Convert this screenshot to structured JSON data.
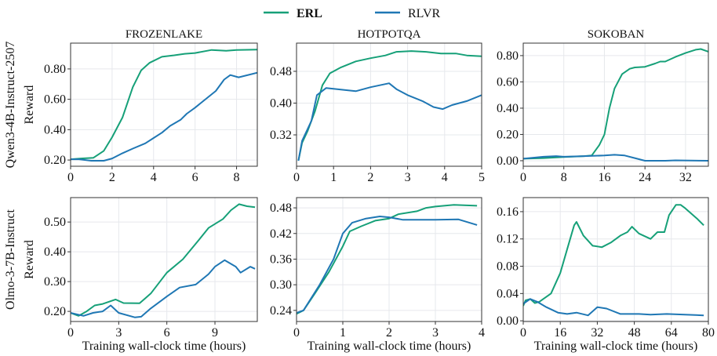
{
  "legend": {
    "entries": [
      {
        "name": "ERL",
        "color": "#16a078"
      },
      {
        "name": "RLVR",
        "color": "#1f77b4"
      }
    ]
  },
  "row_labels": [
    "Qwen3-4B-Instruct-2507",
    "Olmo-3-7B-Instruct"
  ],
  "chart_data": [
    {
      "type": "line",
      "title": "FROZENLAKE",
      "ylabel": "Reward",
      "xlabel": "",
      "xlim": [
        0,
        9
      ],
      "ylim": [
        0.159,
        0.97
      ],
      "xticks": [
        0,
        2,
        4,
        6,
        8
      ],
      "yticks": [
        "0.20",
        "0.40",
        "0.60",
        "0.80"
      ],
      "series": [
        {
          "name": "ERL",
          "values": [
            [
              0,
              0.205
            ],
            [
              0.5,
              0.21
            ],
            [
              1.1,
              0.215
            ],
            [
              1.6,
              0.26
            ],
            [
              2,
              0.35
            ],
            [
              2.5,
              0.48
            ],
            [
              3,
              0.68
            ],
            [
              3.4,
              0.79
            ],
            [
              3.8,
              0.84
            ],
            [
              4.4,
              0.88
            ],
            [
              5,
              0.89
            ],
            [
              5.5,
              0.9
            ],
            [
              6,
              0.905
            ],
            [
              6.8,
              0.925
            ],
            [
              7.5,
              0.92
            ],
            [
              8,
              0.925
            ],
            [
              9,
              0.927
            ]
          ]
        },
        {
          "name": "RLVR",
          "values": [
            [
              0,
              0.205
            ],
            [
              0.4,
              0.205
            ],
            [
              1,
              0.195
            ],
            [
              1.6,
              0.195
            ],
            [
              2,
              0.21
            ],
            [
              2.5,
              0.245
            ],
            [
              3,
              0.275
            ],
            [
              3.6,
              0.31
            ],
            [
              4,
              0.345
            ],
            [
              4.4,
              0.38
            ],
            [
              4.8,
              0.425
            ],
            [
              5.3,
              0.465
            ],
            [
              5.6,
              0.505
            ],
            [
              6,
              0.545
            ],
            [
              6.5,
              0.6
            ],
            [
              7,
              0.655
            ],
            [
              7.4,
              0.73
            ],
            [
              7.7,
              0.76
            ],
            [
              8.1,
              0.745
            ],
            [
              9,
              0.775
            ]
          ]
        }
      ]
    },
    {
      "type": "line",
      "title": "HOTPOTQA",
      "ylabel": "",
      "xlabel": "",
      "xlim": [
        0,
        5
      ],
      "ylim": [
        0.241,
        0.551
      ],
      "xticks": [
        0,
        1,
        2,
        3,
        4,
        5
      ],
      "yticks": [
        "0.32",
        "0.40",
        "0.48"
      ],
      "series": [
        {
          "name": "ERL",
          "values": [
            [
              0.05,
              0.255
            ],
            [
              0.15,
              0.3
            ],
            [
              0.3,
              0.33
            ],
            [
              0.5,
              0.38
            ],
            [
              0.7,
              0.445
            ],
            [
              0.9,
              0.475
            ],
            [
              1.2,
              0.49
            ],
            [
              1.6,
              0.505
            ],
            [
              2,
              0.513
            ],
            [
              2.4,
              0.52
            ],
            [
              2.7,
              0.529
            ],
            [
              3.1,
              0.531
            ],
            [
              3.5,
              0.529
            ],
            [
              3.9,
              0.525
            ],
            [
              4.3,
              0.525
            ],
            [
              4.6,
              0.52
            ],
            [
              5,
              0.518
            ]
          ]
        },
        {
          "name": "RLVR",
          "values": [
            [
              0.05,
              0.255
            ],
            [
              0.15,
              0.305
            ],
            [
              0.3,
              0.335
            ],
            [
              0.4,
              0.355
            ],
            [
              0.55,
              0.42
            ],
            [
              0.8,
              0.438
            ],
            [
              1.1,
              0.435
            ],
            [
              1.6,
              0.43
            ],
            [
              2,
              0.44
            ],
            [
              2.5,
              0.45
            ],
            [
              2.7,
              0.435
            ],
            [
              3,
              0.42
            ],
            [
              3.4,
              0.405
            ],
            [
              3.7,
              0.39
            ],
            [
              3.95,
              0.385
            ],
            [
              4.2,
              0.395
            ],
            [
              4.6,
              0.405
            ],
            [
              5,
              0.42
            ]
          ]
        }
      ]
    },
    {
      "type": "line",
      "title": "SOKOBAN",
      "ylabel": "",
      "xlabel": "",
      "xlim": [
        0,
        36.5
      ],
      "ylim": [
        -0.042,
        0.895
      ],
      "xticks": [
        0,
        8,
        16,
        24,
        32
      ],
      "yticks": [
        "0.00",
        "0.20",
        "0.40",
        "0.60",
        "0.80"
      ],
      "series": [
        {
          "name": "ERL",
          "values": [
            [
              0,
              0.015
            ],
            [
              4,
              0.02
            ],
            [
              8,
              0.028
            ],
            [
              12,
              0.035
            ],
            [
              13.5,
              0.04
            ],
            [
              15,
              0.12
            ],
            [
              16,
              0.2
            ],
            [
              17,
              0.4
            ],
            [
              18,
              0.55
            ],
            [
              19.5,
              0.66
            ],
            [
              21,
              0.7
            ],
            [
              22,
              0.71
            ],
            [
              24,
              0.715
            ],
            [
              26,
              0.74
            ],
            [
              27,
              0.755
            ],
            [
              28,
              0.755
            ],
            [
              30,
              0.79
            ],
            [
              32,
              0.82
            ],
            [
              34,
              0.845
            ],
            [
              35,
              0.85
            ],
            [
              36.5,
              0.83
            ]
          ]
        },
        {
          "name": "RLVR",
          "values": [
            [
              0,
              0.015
            ],
            [
              4,
              0.03
            ],
            [
              6.5,
              0.035
            ],
            [
              8,
              0.03
            ],
            [
              12,
              0.035
            ],
            [
              16,
              0.04
            ],
            [
              18,
              0.045
            ],
            [
              20,
              0.04
            ],
            [
              22,
              0.02
            ],
            [
              24,
              0.0
            ],
            [
              28,
              0.0
            ],
            [
              30,
              0.003
            ],
            [
              36.5,
              0.0
            ]
          ]
        }
      ]
    },
    {
      "type": "line",
      "title": "",
      "ylabel": "Reward",
      "xlabel": "Training wall-clock time (hours)",
      "xlim": [
        0,
        11.64
      ],
      "ylim": [
        0.166,
        0.582
      ],
      "xticks": [
        0,
        3,
        6,
        9
      ],
      "yticks": [
        "0.20",
        "0.30",
        "0.40",
        "0.50"
      ],
      "series": [
        {
          "name": "ERL",
          "values": [
            [
              0,
              0.195
            ],
            [
              0.5,
              0.185
            ],
            [
              1,
              0.2
            ],
            [
              1.5,
              0.22
            ],
            [
              2,
              0.225
            ],
            [
              2.8,
              0.24
            ],
            [
              3.3,
              0.228
            ],
            [
              4.3,
              0.227
            ],
            [
              5,
              0.26
            ],
            [
              6,
              0.33
            ],
            [
              7,
              0.375
            ],
            [
              8,
              0.44
            ],
            [
              8.6,
              0.48
            ],
            [
              9.5,
              0.51
            ],
            [
              10,
              0.54
            ],
            [
              10.5,
              0.56
            ],
            [
              11,
              0.553
            ],
            [
              11.5,
              0.55
            ]
          ]
        },
        {
          "name": "RLVR",
          "values": [
            [
              0,
              0.195
            ],
            [
              0.8,
              0.185
            ],
            [
              1.4,
              0.195
            ],
            [
              2,
              0.2
            ],
            [
              2.5,
              0.22
            ],
            [
              3,
              0.195
            ],
            [
              4,
              0.18
            ],
            [
              4.4,
              0.182
            ],
            [
              5,
              0.21
            ],
            [
              6,
              0.25
            ],
            [
              6.8,
              0.28
            ],
            [
              7.8,
              0.29
            ],
            [
              8.6,
              0.325
            ],
            [
              9,
              0.35
            ],
            [
              9.6,
              0.372
            ],
            [
              10.3,
              0.35
            ],
            [
              10.6,
              0.33
            ],
            [
              11.2,
              0.35
            ],
            [
              11.5,
              0.343
            ]
          ]
        }
      ]
    },
    {
      "type": "line",
      "title": "",
      "ylabel": "",
      "xlabel": "Training wall-clock time (hours)",
      "xlim": [
        0,
        4
      ],
      "ylim": [
        0.214,
        0.504
      ],
      "xticks": [
        0,
        1,
        2,
        3,
        4
      ],
      "yticks": [
        "0.24",
        "0.30",
        "0.36",
        "0.42",
        "0.48"
      ],
      "series": [
        {
          "name": "ERL",
          "values": [
            [
              0,
              0.232
            ],
            [
              0.15,
              0.24
            ],
            [
              0.4,
              0.28
            ],
            [
              0.7,
              0.33
            ],
            [
              1,
              0.39
            ],
            [
              1.15,
              0.425
            ],
            [
              1.4,
              0.437
            ],
            [
              1.7,
              0.45
            ],
            [
              2,
              0.455
            ],
            [
              2.2,
              0.465
            ],
            [
              2.6,
              0.472
            ],
            [
              2.8,
              0.48
            ],
            [
              3,
              0.483
            ],
            [
              3.4,
              0.487
            ],
            [
              3.9,
              0.485
            ]
          ]
        },
        {
          "name": "RLVR",
          "values": [
            [
              0,
              0.234
            ],
            [
              0.15,
              0.24
            ],
            [
              0.5,
              0.3
            ],
            [
              0.8,
              0.36
            ],
            [
              1,
              0.42
            ],
            [
              1.2,
              0.445
            ],
            [
              1.5,
              0.455
            ],
            [
              1.8,
              0.46
            ],
            [
              2,
              0.458
            ],
            [
              2.3,
              0.452
            ],
            [
              2.6,
              0.452
            ],
            [
              3,
              0.452
            ],
            [
              3.5,
              0.453
            ],
            [
              3.9,
              0.44
            ]
          ]
        }
      ]
    },
    {
      "type": "line",
      "title": "",
      "ylabel": "",
      "xlabel": "Training wall-clock time (hours)",
      "xlim": [
        0,
        80
      ],
      "ylim": [
        -0.001,
        0.1806
      ],
      "xticks": [
        0,
        16,
        32,
        48,
        64,
        80
      ],
      "yticks": [
        "0.00",
        "0.04",
        "0.08",
        "0.12",
        "0.16"
      ],
      "series": [
        {
          "name": "ERL",
          "values": [
            [
              0,
              0.022
            ],
            [
              1,
              0.03
            ],
            [
              3,
              0.032
            ],
            [
              5,
              0.026
            ],
            [
              7,
              0.028
            ],
            [
              12,
              0.04
            ],
            [
              16,
              0.07
            ],
            [
              19,
              0.105
            ],
            [
              22,
              0.14
            ],
            [
              23,
              0.145
            ],
            [
              26,
              0.125
            ],
            [
              30,
              0.11
            ],
            [
              34,
              0.108
            ],
            [
              38,
              0.115
            ],
            [
              42,
              0.125
            ],
            [
              45,
              0.13
            ],
            [
              47,
              0.138
            ],
            [
              50,
              0.128
            ],
            [
              55,
              0.12
            ],
            [
              58,
              0.13
            ],
            [
              61,
              0.13
            ],
            [
              63,
              0.155
            ],
            [
              66,
              0.17
            ],
            [
              68,
              0.17
            ],
            [
              70,
              0.165
            ],
            [
              75,
              0.15
            ],
            [
              78,
              0.14
            ]
          ]
        },
        {
          "name": "RLVR",
          "values": [
            [
              0,
              0.025
            ],
            [
              3,
              0.032
            ],
            [
              6,
              0.028
            ],
            [
              10,
              0.02
            ],
            [
              15,
              0.012
            ],
            [
              19,
              0.01
            ],
            [
              23,
              0.012
            ],
            [
              28,
              0.008
            ],
            [
              32,
              0.02
            ],
            [
              36,
              0.018
            ],
            [
              42,
              0.01
            ],
            [
              50,
              0.01
            ],
            [
              55,
              0.009
            ],
            [
              62,
              0.01
            ],
            [
              78,
              0.008
            ]
          ]
        }
      ]
    }
  ]
}
